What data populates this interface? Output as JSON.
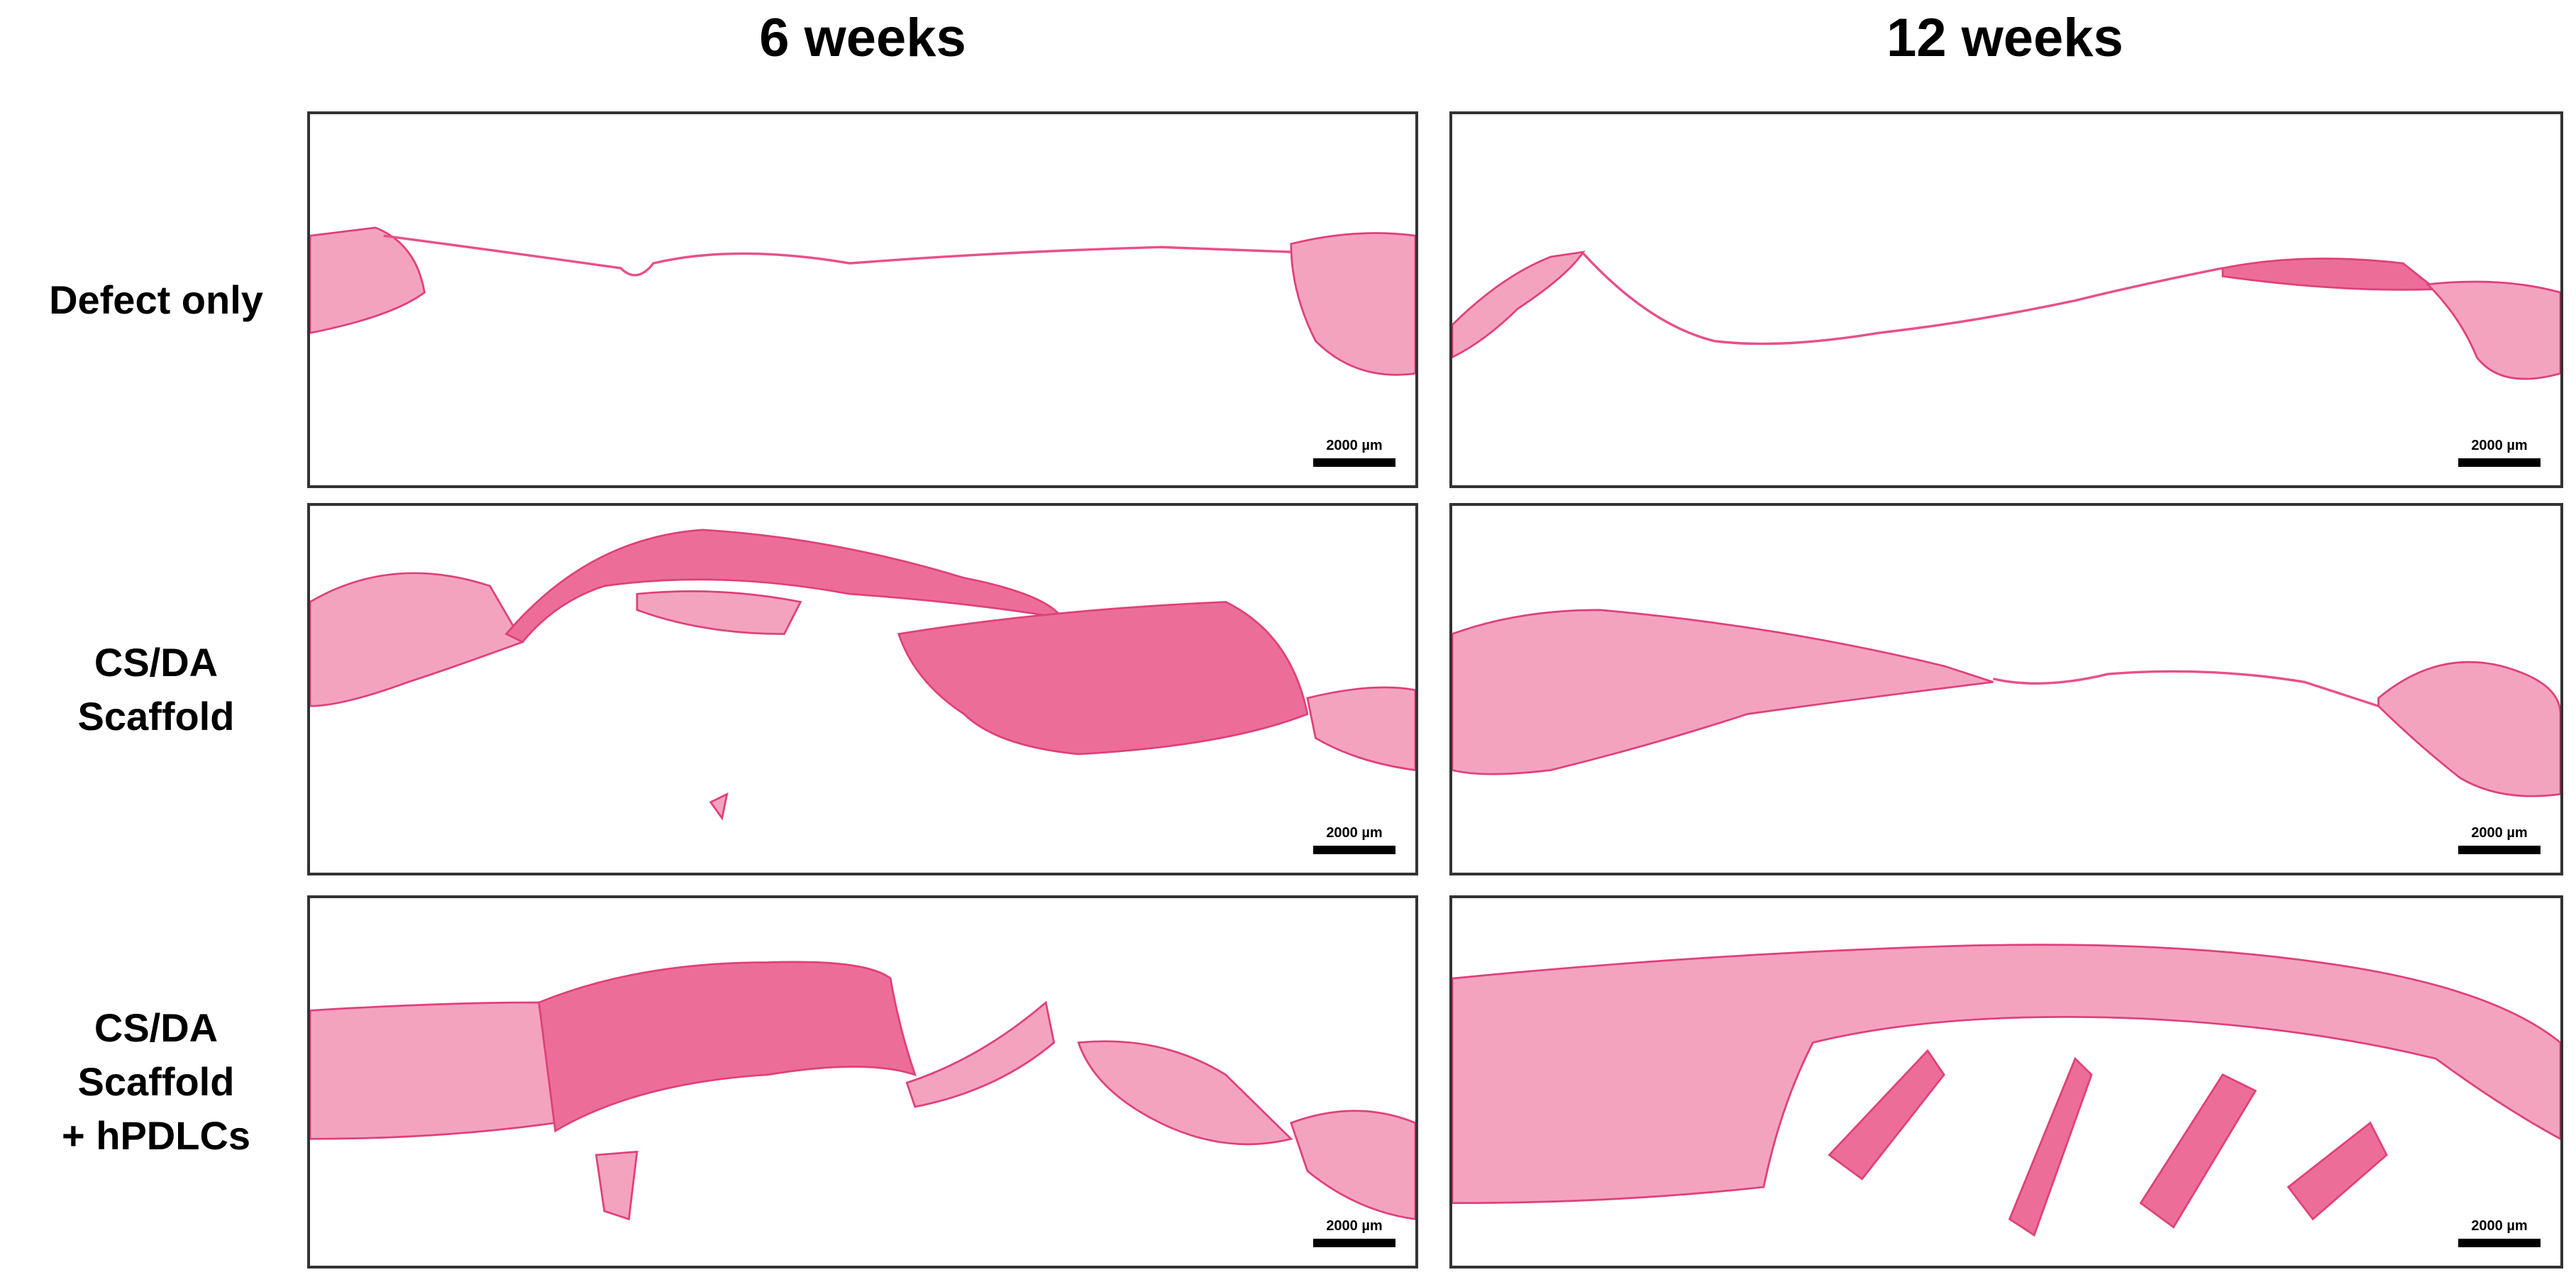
{
  "columns": [
    "6 weeks",
    "12 weeks"
  ],
  "rows": [
    {
      "label": [
        "Defect only"
      ],
      "panels": [
        {
          "scale_bar": "2000 µm"
        },
        {
          "scale_bar": "2000 µm"
        }
      ]
    },
    {
      "label": [
        "CS/DA",
        "Scaffold"
      ],
      "panels": [
        {
          "scale_bar": "2000 µm"
        },
        {
          "scale_bar": "2000 µm"
        }
      ]
    },
    {
      "label": [
        "CS/DA Scaffold",
        "+ hPDLCs"
      ],
      "panels": [
        {
          "scale_bar": "2000 µm"
        },
        {
          "scale_bar": "2000 µm"
        }
      ]
    }
  ]
}
